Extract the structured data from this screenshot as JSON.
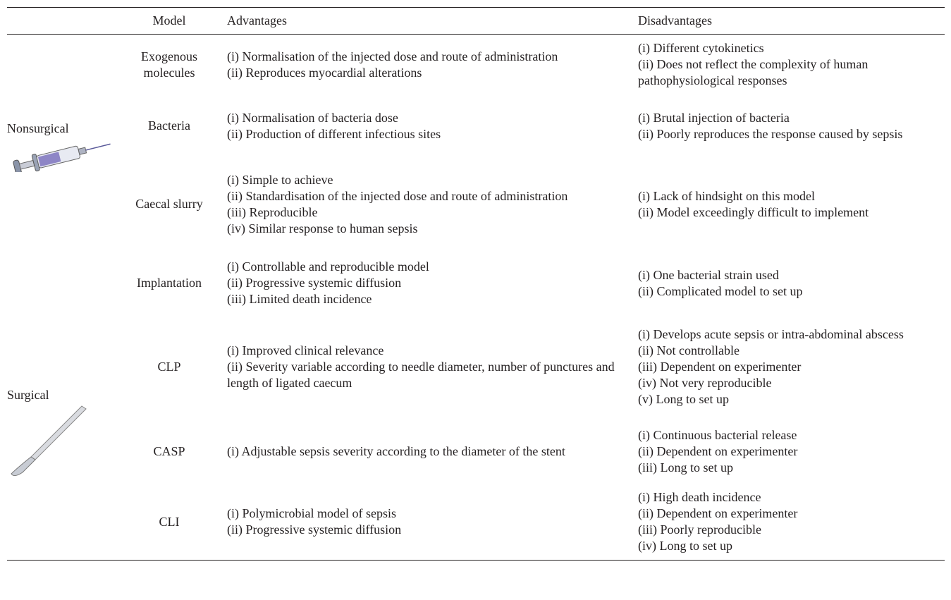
{
  "table": {
    "headers": [
      "Model",
      "Advantages",
      "Disadvantages"
    ],
    "groups": [
      {
        "label": "Nonsurgical",
        "rows": [
          {
            "model": "Exogenous molecules",
            "advantages": [
              "(i) Normalisation of the injected dose and route of administration",
              "(ii) Reproduces myocardial alterations"
            ],
            "disadvantages": [
              "(i) Different cytokinetics",
              "(ii) Does not reflect the complexity of human pathophysiological responses"
            ]
          },
          {
            "model": "Bacteria",
            "advantages": [
              "(i) Normalisation of bacteria dose",
              "(ii) Production of different infectious sites"
            ],
            "disadvantages": [
              "(i) Brutal injection of bacteria",
              "(ii) Poorly reproduces the response caused by sepsis"
            ]
          },
          {
            "model": "Caecal slurry",
            "advantages": [
              "(i) Simple to achieve",
              "(ii) Standardisation of the injected dose and route of administration",
              "(iii) Reproducible",
              "(iv) Similar response to human sepsis"
            ],
            "disadvantages": [
              "(i) Lack of hindsight on this model",
              "(ii) Model exceedingly difficult to implement"
            ]
          },
          {
            "model": "Implantation",
            "advantages": [
              "(i) Controllable and reproducible model",
              "(ii) Progressive systemic diffusion",
              "(iii) Limited death incidence"
            ],
            "disadvantages": [
              "(i) One bacterial strain used",
              "(ii) Complicated model to set up"
            ]
          }
        ]
      },
      {
        "label": "Surgical",
        "rows": [
          {
            "model": "CLP",
            "advantages": [
              "(i) Improved clinical relevance",
              "(ii) Severity variable according to needle diameter, number of punctures and length of ligated caecum"
            ],
            "disadvantages": [
              "(i) Develops acute sepsis or intra-abdominal abscess",
              "(ii) Not controllable",
              "(iii) Dependent on experimenter",
              "(iv) Not very reproducible",
              "(v) Long to set up"
            ]
          },
          {
            "model": "CASP",
            "advantages": [
              "(i) Adjustable sepsis severity according to the diameter of the stent"
            ],
            "disadvantages": [
              "(i) Continuous bacterial release",
              "(ii) Dependent on experimenter",
              "(iii) Long to set up"
            ]
          },
          {
            "model": "CLI",
            "advantages": [
              "(i) Polymicrobial model of sepsis",
              "(ii) Progressive systemic diffusion"
            ],
            "disadvantages": [
              "(i) High death incidence",
              "(ii) Dependent on experimenter",
              "(iii) Poorly reproducible",
              "(iv) Long to set up"
            ]
          }
        ]
      }
    ]
  }
}
